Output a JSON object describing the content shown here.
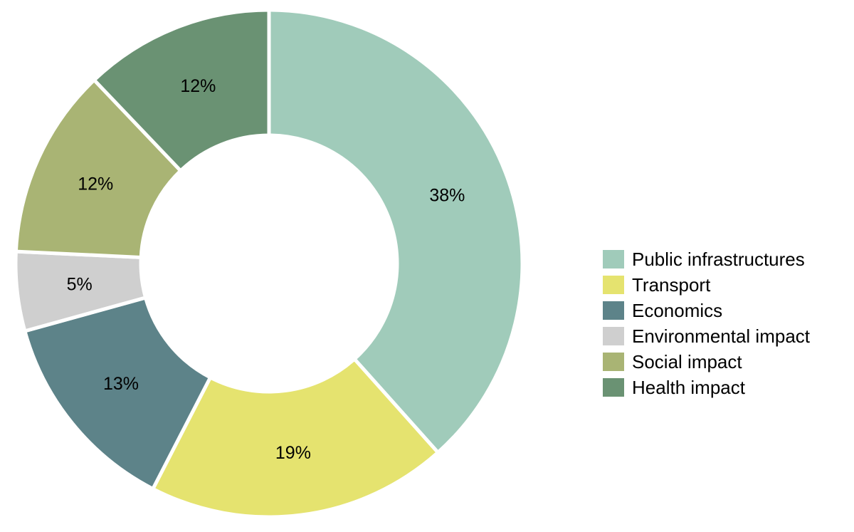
{
  "chart_data": {
    "type": "pie",
    "categories": [
      "Public infrastructures",
      "Transport",
      "Economics",
      "Environmental impact",
      "Social impact",
      "Health impact"
    ],
    "values": [
      38,
      19,
      13,
      5,
      12,
      12
    ],
    "value_labels": [
      "38%",
      "19%",
      "13%",
      "5%",
      "12%",
      "12%"
    ],
    "colors": [
      "#a0cbba",
      "#e5e36f",
      "#5d8389",
      "#cfcfcf",
      "#a9b474",
      "#6a9273"
    ],
    "donut": true,
    "legend_position": "right"
  }
}
